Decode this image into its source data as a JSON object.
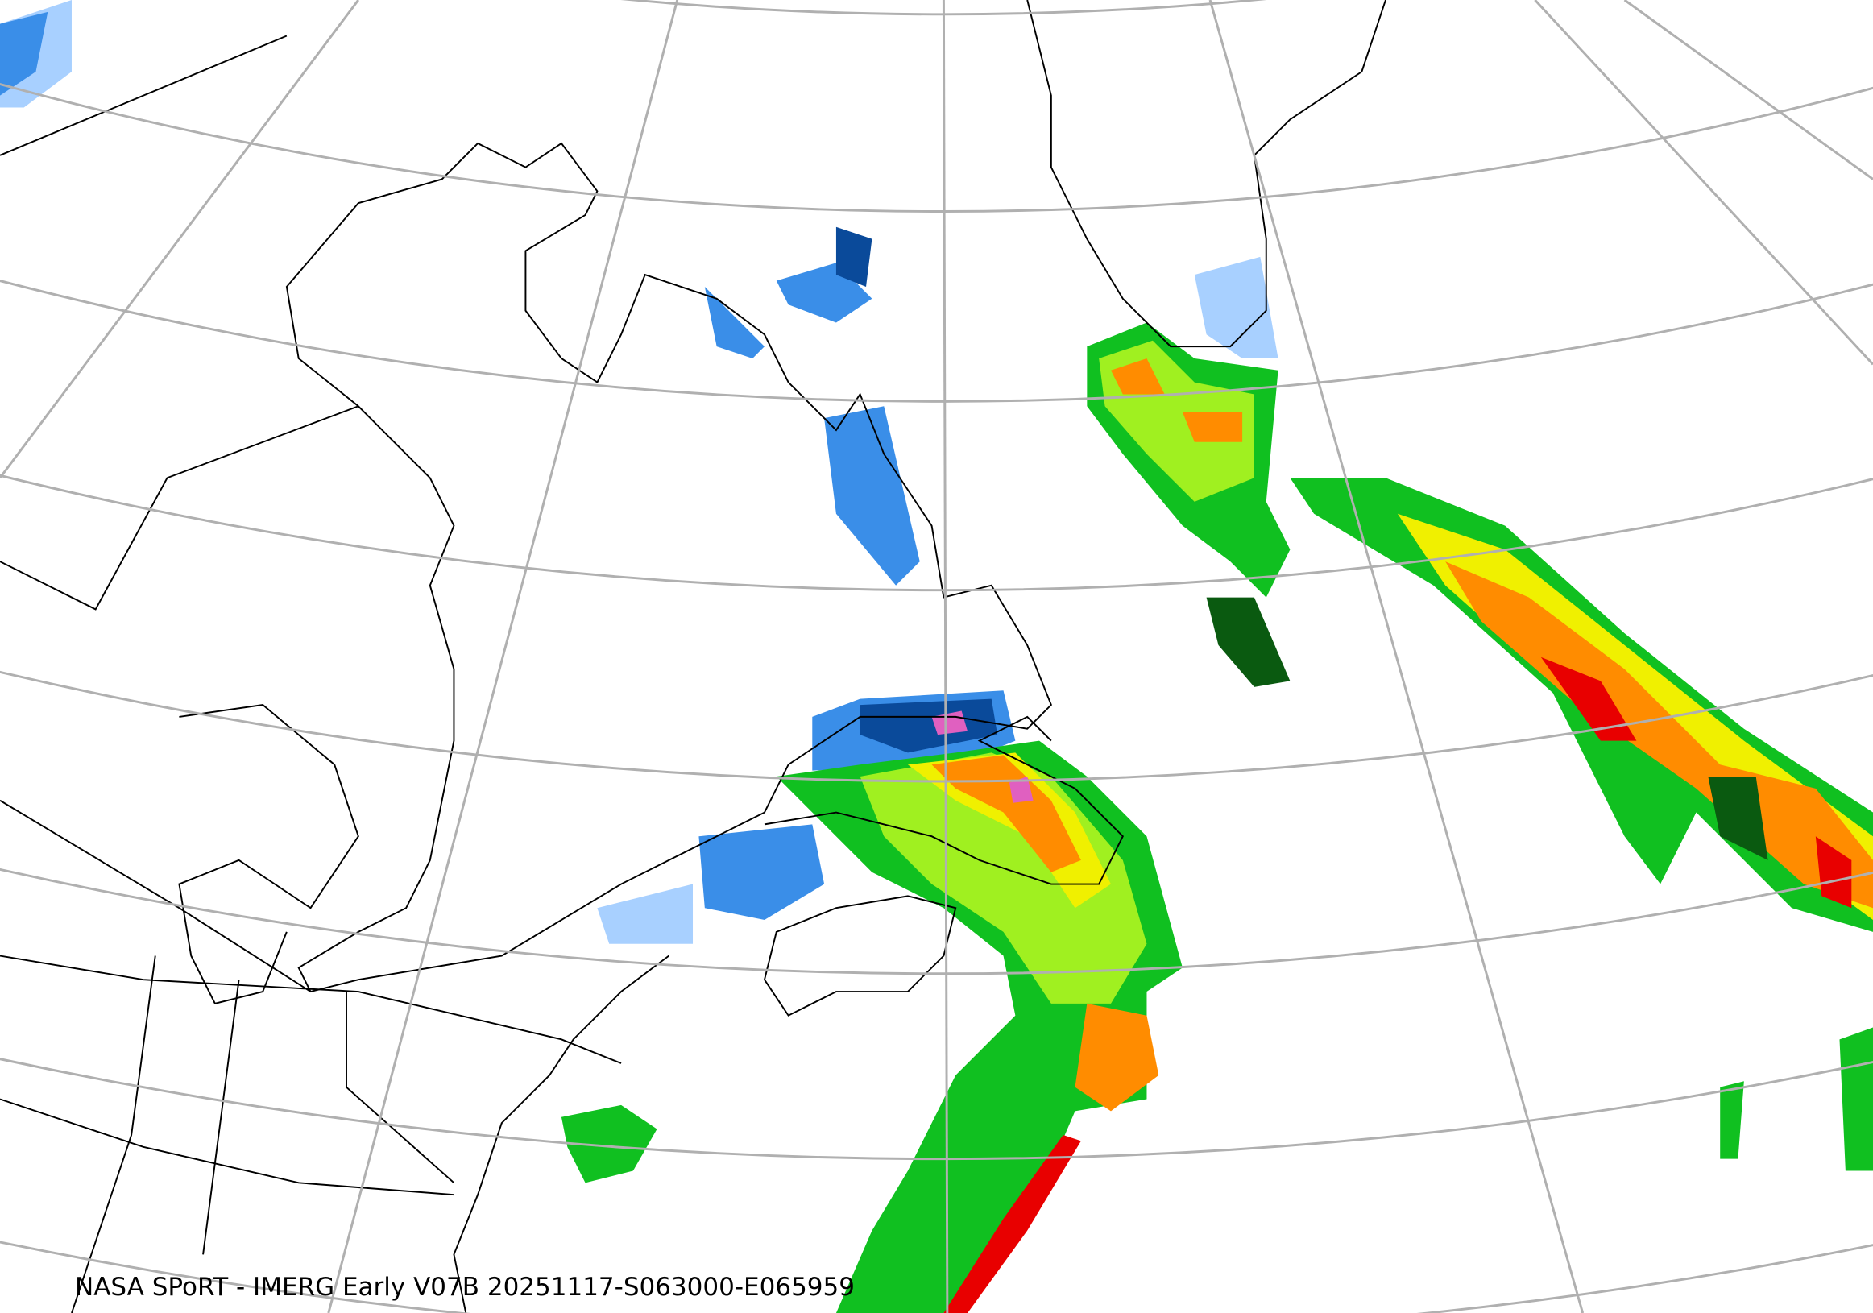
{
  "caption": "NASA SPoRT - IMERG Early V07B 20251117-S063000-E065959",
  "colors": {
    "graticule": "#b0b0b0",
    "coastline": "#000000",
    "precip_light_blue": "#a8d0ff",
    "precip_blue": "#3a8ee8",
    "precip_dark_blue": "#0a4a9a",
    "precip_pink": "#e060c0",
    "precip_dark_green": "#0a5a10",
    "precip_green": "#10c020",
    "precip_light_green": "#a0f020",
    "precip_yellow": "#f0f000",
    "precip_orange": "#ff8c00",
    "precip_red": "#e80000"
  }
}
